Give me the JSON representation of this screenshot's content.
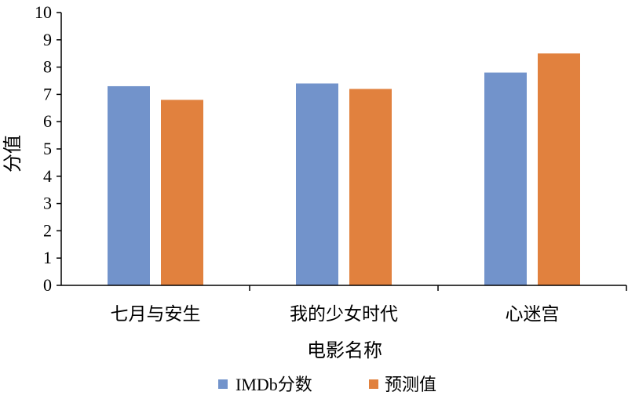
{
  "chart_data": {
    "type": "bar",
    "title": "",
    "xlabel": "电影名称",
    "ylabel": "分值",
    "ylim": [
      0,
      10
    ],
    "yticks": [
      "0",
      "1",
      "2",
      "3",
      "4",
      "5",
      "6",
      "7",
      "8",
      "9",
      "10"
    ],
    "categories": [
      "七月与安生",
      "我的少女时代",
      "心迷宫"
    ],
    "series": [
      {
        "name": "IMDb分数",
        "values": [
          7.3,
          7.4,
          7.8
        ],
        "color": "#7293cb"
      },
      {
        "name": "预测值",
        "values": [
          6.8,
          7.2,
          8.5
        ],
        "color": "#e1813e"
      }
    ],
    "legend_position": "bottom",
    "grid": false
  }
}
